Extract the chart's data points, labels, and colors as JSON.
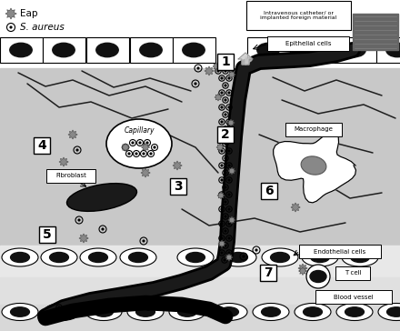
{
  "bg_top_white": "#ffffff",
  "bg_tissue_gray": "#c8c8c8",
  "bg_endothelial_white": "#f0f0f0",
  "bg_blood_gray": "#d0d0d0",
  "bg_bottom_light": "#e0e0e0",
  "legend_eap": "Eap",
  "legend_saureus": "S. aureus",
  "label_catheter": "Intravenous catheter/ or\nimplanted foreign material",
  "label_epithelial": "Epithelial cells",
  "label_endothelial": "Endothelial cells",
  "label_capillary": "Capillary",
  "label_fibroblast": "Fibroblast",
  "label_macrophage": "Macrophage",
  "label_tcell": "T cell",
  "label_bloodvessel": "Blood vessel",
  "num_1": "1",
  "num_2": "2",
  "num_3": "3",
  "num_4": "4",
  "num_5": "5",
  "num_6": "6",
  "num_7": "7"
}
